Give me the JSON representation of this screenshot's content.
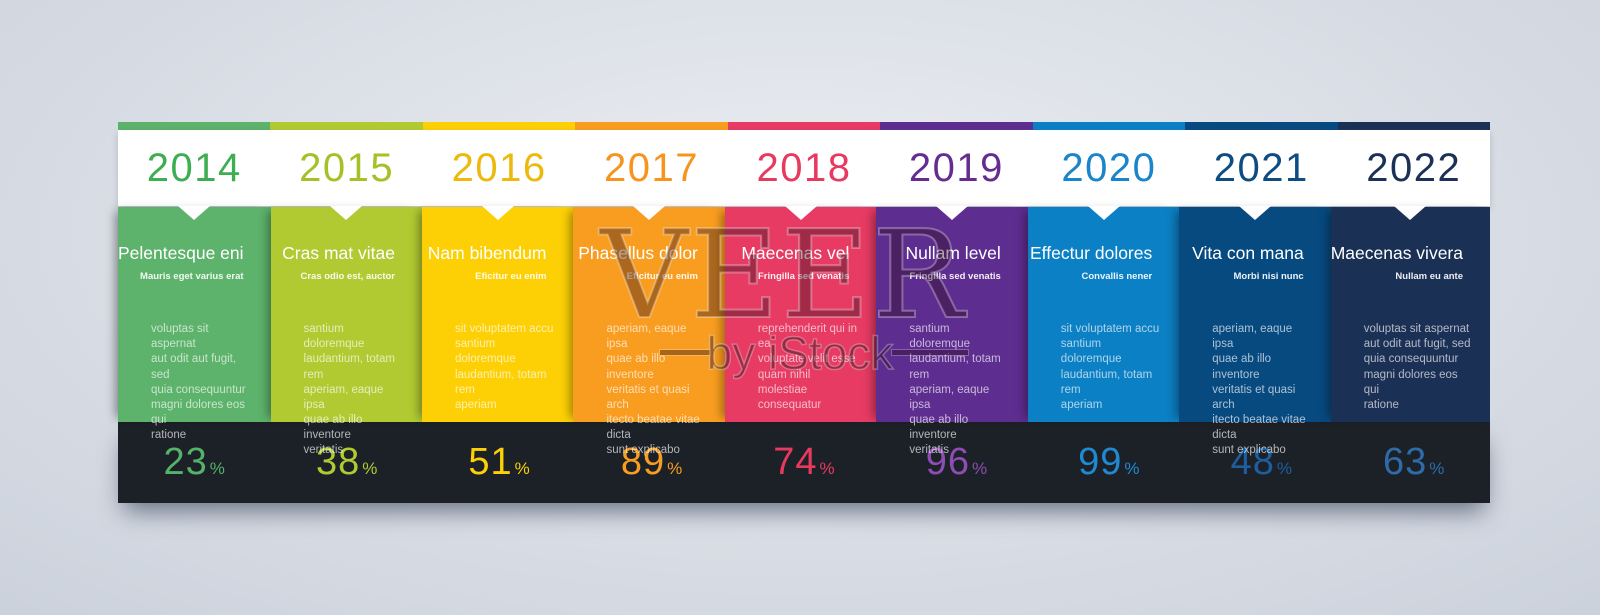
{
  "watermark": {
    "brand": "VEER",
    "subtitle": "by iStock"
  },
  "colors": {
    "year_bar_background": "#ffffff",
    "percent_bar_background": "#1c2127"
  },
  "timeline": {
    "percent_suffix": "%",
    "columns": [
      {
        "year": "2014",
        "color": "#5db36b",
        "year_color": "#3fae52",
        "percent_color": "#55b26a",
        "title": "Pelentesque eni",
        "subtitle": "Mauris eget varius erat",
        "body": "voluptas sit aspernat\naut odit aut fugit, sed\nquia consequuntur\nmagni dolores eos qui\nratione",
        "percent": "23"
      },
      {
        "year": "2015",
        "color": "#b2ca32",
        "year_color": "#a4c128",
        "percent_color": "#b2ca32",
        "title": "Cras mat vitae",
        "subtitle": "Cras odio est, auctor",
        "body": "santium doloremque\nlaudantium, totam rem\naperiam, eaque ipsa\nquae ab illo inventore\nveritatis",
        "percent": "38"
      },
      {
        "year": "2016",
        "color": "#fdd005",
        "year_color": "#ecb90e",
        "percent_color": "#fdd005",
        "title": "Nam bibendum",
        "subtitle": "Eficitur eu enim",
        "body": "sit voluptatem accu\nsantium doloremque\nlaudantium, totam rem\naperiam",
        "percent": "51"
      },
      {
        "year": "2017",
        "color": "#f89d20",
        "year_color": "#f7941e",
        "percent_color": "#f89d20",
        "title": "Phasellus dolor",
        "subtitle": "Eficitur eu enim",
        "body": "aperiam, eaque ipsa\nquae ab illo inventore\nveritatis et quasi arch\nitecto beatae vitae dicta\nsunt explicabo",
        "percent": "89"
      },
      {
        "year": "2018",
        "color": "#e73b63",
        "year_color": "#e8395f",
        "percent_color": "#e8395f",
        "title": "Maecenas vel",
        "subtitle": "Fringilla sed venatis",
        "body": "reprehenderit qui in ea\nvoluptate velit esse\nquam nihil molestiae\nconsequatur",
        "percent": "74"
      },
      {
        "year": "2019",
        "color": "#5e2d90",
        "year_color": "#662d91",
        "percent_color": "#8d4db4",
        "title": "Nullam level",
        "subtitle": "Fringilla sed venatis",
        "body": "santium doloremque\nlaudantium, totam rem\naperiam, eaque ipsa\nquae ab illo inventore\nveritatis",
        "percent": "96"
      },
      {
        "year": "2020",
        "color": "#0c80c4",
        "year_color": "#1a85c9",
        "percent_color": "#1f8ad2",
        "title": "Effectur dolores",
        "subtitle": "Convallis nener",
        "body": "sit voluptatem accu\nsantium doloremque\nlaudantium, totam rem\naperiam",
        "percent": "99"
      },
      {
        "year": "2021",
        "color": "#074a80",
        "year_color": "#0d4d82",
        "percent_color": "#1c5e9e",
        "title": "Vita con mana",
        "subtitle": "Morbi nisi nunc",
        "body": "aperiam, eaque ipsa\nquae ab illo inventore\nveritatis et quasi arch\nitecto beatae vitae dicta\nsunt explicabo",
        "percent": "48"
      },
      {
        "year": "2022",
        "color": "#1b3055",
        "year_color": "#1c3157",
        "percent_color": "#2e6ba8",
        "title": "Maecenas vivera",
        "subtitle": "Nullam eu ante",
        "body": "voluptas sit aspernat\naut odit aut fugit, sed\nquia consequuntur\nmagni dolores eos qui\nratione",
        "percent": "63"
      }
    ]
  }
}
